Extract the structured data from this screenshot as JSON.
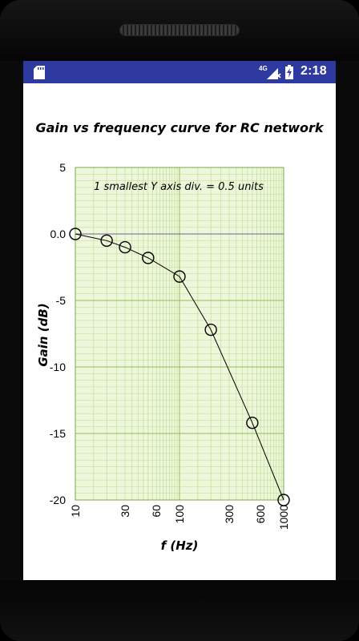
{
  "status_bar": {
    "network_label": "4G",
    "time": "2:18"
  },
  "chart_data": {
    "type": "line",
    "title": "Gain vs frequency curve for RC network",
    "xlabel": "f (Hz)",
    "ylabel": "Gain (dB)",
    "annotation": "1 smallest Y axis div. = 0.5 units",
    "x_scale": "log",
    "xlim": [
      10,
      1000
    ],
    "ylim": [
      -20,
      5
    ],
    "x_ticks": [
      10,
      30,
      60,
      100,
      300,
      600,
      1000
    ],
    "y_ticks": [
      5,
      0,
      -5,
      -10,
      -15,
      -20
    ],
    "y_tick_labels": [
      "5",
      "0.0",
      "-5",
      "-10",
      "-15",
      "-20"
    ],
    "grid": true,
    "marker": "open-circle",
    "series": [
      {
        "x": [
          10,
          20,
          30,
          50,
          100,
          200,
          500,
          1000
        ],
        "y": [
          0,
          -0.5,
          -1,
          -1.8,
          -3.2,
          -7.2,
          -14.2,
          -20
        ]
      }
    ],
    "colors": {
      "plot_background": "#eef7dc",
      "grid_minor": "#b9dc8a",
      "grid_major": "#8fbf5a",
      "line": "#000000",
      "status_bar": "#2f3aa0"
    }
  }
}
